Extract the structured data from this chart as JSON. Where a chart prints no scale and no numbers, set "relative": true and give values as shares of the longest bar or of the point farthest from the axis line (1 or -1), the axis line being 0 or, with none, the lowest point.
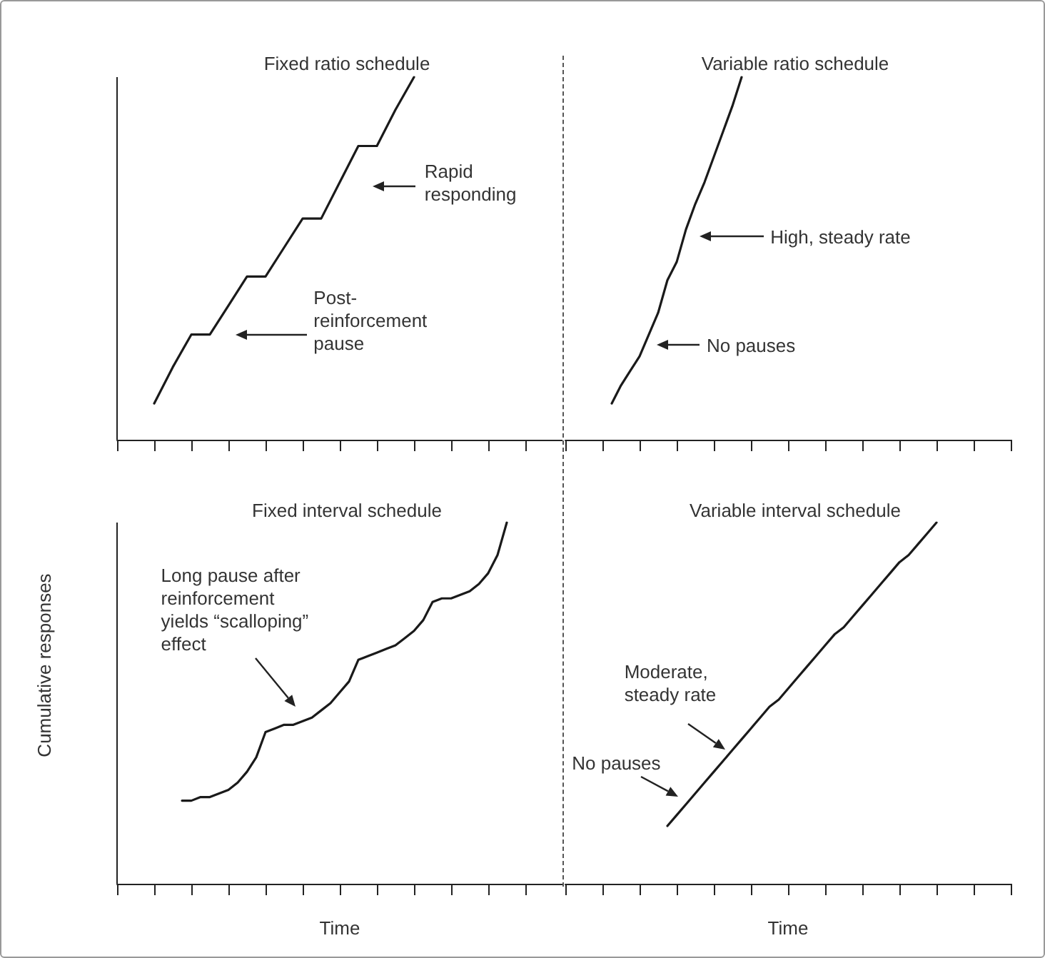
{
  "chart_data": [
    {
      "type": "line",
      "title": "Fixed ratio schedule",
      "relative": true,
      "marker": "none",
      "line_style": "solid",
      "tick_labels": false,
      "categories": [
        null,
        null,
        null,
        null,
        null,
        null,
        null,
        null,
        null,
        null,
        null,
        null,
        null,
        null,
        null,
        null,
        null,
        null,
        null,
        null,
        null,
        null,
        null,
        null,
        null
      ],
      "series": [
        {
          "color": "#1a1a1a",
          "values": [
            null,
            null,
            0.1,
            0.2,
            0.29,
            0.29,
            0.37,
            0.45,
            0.45,
            0.53,
            0.61,
            0.61,
            0.71,
            0.81,
            0.81,
            0.91,
            1,
            null,
            null,
            null,
            null,
            null,
            null,
            null,
            null
          ]
        }
      ],
      "annotations": [
        "Rapid responding",
        "Post-reinforcement pause"
      ]
    },
    {
      "type": "line",
      "title": "Variable ratio schedule",
      "relative": true,
      "marker": "none",
      "line_style": "solid",
      "tick_labels": false,
      "categories": [
        null,
        null,
        null,
        null,
        null,
        null,
        null,
        null,
        null,
        null,
        null,
        null,
        null,
        null,
        null,
        null,
        null,
        null,
        null,
        null,
        null,
        null,
        null,
        null,
        null,
        null,
        null,
        null,
        null,
        null,
        null,
        null,
        null,
        null,
        null,
        null,
        null,
        null,
        null,
        null,
        null,
        null,
        null,
        null,
        null,
        null,
        null,
        null,
        null
      ],
      "series": [
        {
          "color": "#1a1a1a",
          "values": [
            null,
            null,
            null,
            null,
            null,
            0.1,
            0.15,
            0.19,
            0.23,
            0.29,
            0.35,
            0.44,
            0.49,
            0.58,
            0.65,
            0.71,
            0.78,
            0.85,
            0.92,
            1,
            null,
            null,
            null,
            null,
            null,
            null,
            null,
            null,
            null,
            null,
            null,
            null,
            null,
            null,
            null,
            null,
            null,
            null,
            null,
            null,
            null,
            null,
            null,
            null,
            null,
            null,
            null,
            null,
            null
          ]
        }
      ],
      "annotations": [
        "High, steady rate",
        "No pauses"
      ]
    },
    {
      "type": "line",
      "title": "Fixed interval schedule",
      "xlabel": "Time",
      "ylabel": "Cumulative responses",
      "relative": true,
      "marker": "none",
      "line_style": "solid",
      "tick_labels": false,
      "categories": [
        null,
        null,
        null,
        null,
        null,
        null,
        null,
        null,
        null,
        null,
        null,
        null,
        null,
        null,
        null,
        null,
        null,
        null,
        null,
        null,
        null,
        null,
        null,
        null,
        null,
        null,
        null,
        null,
        null,
        null,
        null,
        null,
        null,
        null,
        null,
        null,
        null,
        null,
        null,
        null,
        null,
        null,
        null,
        null,
        null,
        null,
        null,
        null,
        null
      ],
      "series": [
        {
          "color": "#1a1a1a",
          "values": [
            null,
            null,
            null,
            null,
            null,
            null,
            null,
            0.23,
            0.23,
            0.24,
            0.24,
            0.25,
            0.26,
            0.28,
            0.31,
            0.35,
            0.42,
            0.43,
            0.44,
            0.44,
            0.45,
            0.46,
            0.48,
            0.5,
            0.53,
            0.56,
            0.62,
            0.63,
            0.64,
            0.65,
            0.66,
            0.68,
            0.7,
            0.73,
            0.78,
            0.79,
            0.79,
            0.8,
            0.81,
            0.83,
            0.86,
            0.91,
            1,
            null,
            null,
            null,
            null,
            null,
            null
          ]
        }
      ],
      "annotations": [
        "Long pause after reinforcement yields “scalloping” effect"
      ]
    },
    {
      "type": "line",
      "title": "Variable interval schedule",
      "xlabel": "Time",
      "relative": true,
      "marker": "none",
      "line_style": "solid",
      "tick_labels": false,
      "categories": [
        null,
        null,
        null,
        null,
        null,
        null,
        null,
        null,
        null,
        null,
        null,
        null,
        null,
        null,
        null,
        null,
        null,
        null,
        null,
        null,
        null,
        null,
        null,
        null,
        null,
        null,
        null,
        null,
        null,
        null,
        null,
        null,
        null,
        null,
        null,
        null,
        null,
        null,
        null,
        null,
        null,
        null,
        null,
        null,
        null,
        null,
        null,
        null,
        null
      ],
      "series": [
        {
          "color": "#1a1a1a",
          "values": [
            null,
            null,
            null,
            null,
            null,
            null,
            null,
            null,
            null,
            null,
            null,
            0.16,
            0.19,
            0.22,
            0.25,
            0.28,
            0.31,
            0.34,
            0.37,
            0.4,
            0.43,
            0.46,
            0.49,
            0.51,
            0.54,
            0.57,
            0.6,
            0.63,
            0.66,
            0.69,
            0.71,
            0.74,
            0.77,
            0.8,
            0.83,
            0.86,
            0.89,
            0.91,
            0.94,
            0.97,
            1,
            null,
            null,
            null,
            null,
            null,
            null,
            null,
            null
          ]
        }
      ],
      "annotations": [
        "Moderate, steady rate",
        "No pauses"
      ]
    }
  ]
}
